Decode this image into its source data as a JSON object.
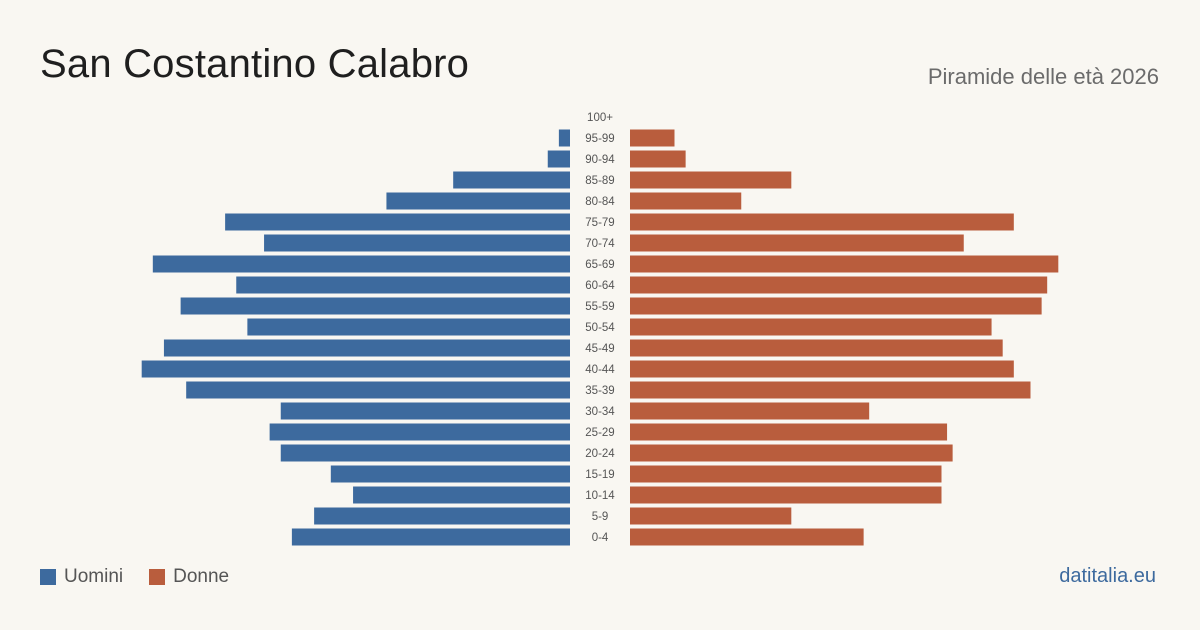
{
  "header": {
    "title": "San Costantino Calabro",
    "subtitle": "Piramide delle età 2026"
  },
  "legend": {
    "men_label": "Uomini",
    "women_label": "Donne"
  },
  "source": "datitalia.eu",
  "colors": {
    "men": "#3d6a9e",
    "women": "#b95d3d",
    "background": "#f9f7f2"
  },
  "chart_data": {
    "type": "bar",
    "orientation": "horizontal-pyramid",
    "categories": [
      "100+",
      "95-99",
      "90-94",
      "85-89",
      "80-84",
      "75-79",
      "70-74",
      "65-69",
      "60-64",
      "55-59",
      "50-54",
      "45-49",
      "40-44",
      "35-39",
      "30-34",
      "25-29",
      "20-24",
      "15-19",
      "10-14",
      "5-9",
      "0-4"
    ],
    "series": [
      {
        "name": "Uomini",
        "values": [
          0,
          2,
          4,
          21,
          33,
          62,
          55,
          75,
          60,
          70,
          58,
          73,
          77,
          69,
          52,
          54,
          52,
          43,
          39,
          46,
          50
        ]
      },
      {
        "name": "Donne",
        "values": [
          0,
          8,
          10,
          29,
          20,
          69,
          60,
          77,
          75,
          74,
          65,
          67,
          69,
          72,
          43,
          57,
          58,
          56,
          56,
          29,
          42
        ]
      }
    ],
    "xlim": [
      0,
      80
    ],
    "grid": false,
    "legend_position": "bottom-left"
  }
}
